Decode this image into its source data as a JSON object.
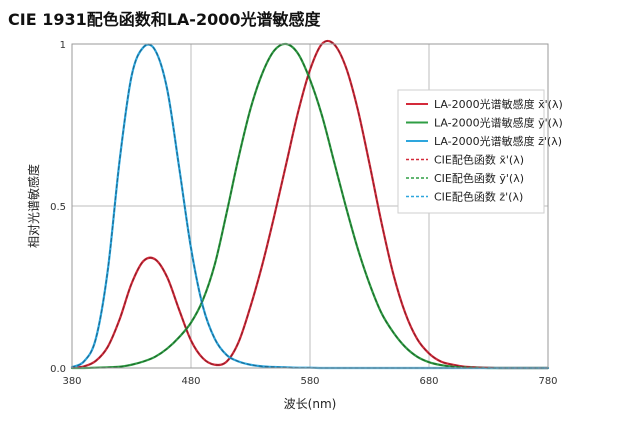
{
  "title": "CIE 1931配色函数和LA-2000光谱敏感度",
  "chart_data": {
    "type": "line",
    "title": "CIE 1931配色函数和LA-2000光谱敏感度",
    "xlabel": "波长(nm)",
    "ylabel": "相对光谱敏感度",
    "xlim": [
      380,
      780
    ],
    "ylim": [
      0,
      1.0
    ],
    "xticks": [
      {
        "value": 380,
        "label": "380"
      },
      {
        "value": 480,
        "label": "480"
      },
      {
        "value": 580,
        "label": "580"
      },
      {
        "value": 680,
        "label": "680"
      },
      {
        "value": 780,
        "label": "780"
      }
    ],
    "yticks": [
      {
        "value": 0,
        "label": "0.0"
      },
      {
        "value": 0.5,
        "label": "0.5"
      },
      {
        "value": 1.0,
        "label": "1"
      }
    ],
    "grid": true,
    "legend_position": "top-right",
    "x": [
      380,
      390,
      400,
      410,
      420,
      430,
      440,
      450,
      460,
      470,
      480,
      490,
      500,
      510,
      520,
      530,
      540,
      550,
      560,
      570,
      580,
      590,
      600,
      610,
      620,
      630,
      640,
      650,
      660,
      670,
      680,
      690,
      700,
      710,
      720,
      730,
      740,
      750,
      760,
      770,
      780
    ],
    "series": [
      {
        "name": "LA-2000光谱敏感度 x̄'(λ)",
        "color": "#d42a3a",
        "style": "solid",
        "values": [
          0.001,
          0.005,
          0.022,
          0.065,
          0.15,
          0.26,
          0.33,
          0.335,
          0.28,
          0.18,
          0.085,
          0.03,
          0.01,
          0.02,
          0.08,
          0.19,
          0.32,
          0.47,
          0.63,
          0.79,
          0.92,
          1.0,
          1.0,
          0.93,
          0.8,
          0.63,
          0.45,
          0.29,
          0.17,
          0.09,
          0.045,
          0.02,
          0.01,
          0.004,
          0.002,
          0.001,
          0.0,
          0.0,
          0.0,
          0.0,
          0.0
        ]
      },
      {
        "name": "LA-2000光谱敏感度 ȳ'(λ)",
        "color": "#2f9e44",
        "style": "solid",
        "values": [
          0.0,
          0.0,
          0.001,
          0.002,
          0.004,
          0.01,
          0.02,
          0.035,
          0.06,
          0.095,
          0.14,
          0.21,
          0.32,
          0.48,
          0.65,
          0.8,
          0.91,
          0.98,
          1.0,
          0.97,
          0.89,
          0.78,
          0.64,
          0.5,
          0.37,
          0.26,
          0.17,
          0.11,
          0.065,
          0.035,
          0.018,
          0.009,
          0.004,
          0.002,
          0.001,
          0.0,
          0.0,
          0.0,
          0.0,
          0.0,
          0.0
        ]
      },
      {
        "name": "LA-2000光谱敏感度 z̄'(λ)",
        "color": "#2ea6dd",
        "style": "solid",
        "values": [
          0.003,
          0.02,
          0.09,
          0.3,
          0.64,
          0.9,
          0.99,
          0.98,
          0.86,
          0.62,
          0.37,
          0.19,
          0.09,
          0.04,
          0.02,
          0.01,
          0.005,
          0.003,
          0.002,
          0.001,
          0.001,
          0.0,
          0.0,
          0.0,
          0.0,
          0.0,
          0.0,
          0.0,
          0.0,
          0.0,
          0.0,
          0.0,
          0.0,
          0.0,
          0.0,
          0.0,
          0.0,
          0.0,
          0.0,
          0.0,
          0.0
        ]
      },
      {
        "name": "CIE配色函数 x̄'(λ)",
        "color": "#d42a3a",
        "style": "dashed",
        "values": [
          0.001,
          0.005,
          0.022,
          0.065,
          0.15,
          0.26,
          0.33,
          0.335,
          0.28,
          0.18,
          0.085,
          0.03,
          0.01,
          0.02,
          0.08,
          0.19,
          0.32,
          0.47,
          0.63,
          0.79,
          0.92,
          1.0,
          1.0,
          0.93,
          0.8,
          0.63,
          0.45,
          0.29,
          0.17,
          0.09,
          0.045,
          0.02,
          0.01,
          0.004,
          0.002,
          0.001,
          0.0,
          0.0,
          0.0,
          0.0,
          0.0
        ]
      },
      {
        "name": "CIE配色函数 ȳ'(λ)",
        "color": "#2f9e44",
        "style": "dashed",
        "values": [
          0.0,
          0.0,
          0.001,
          0.002,
          0.004,
          0.01,
          0.02,
          0.035,
          0.06,
          0.095,
          0.14,
          0.21,
          0.32,
          0.48,
          0.65,
          0.8,
          0.91,
          0.98,
          1.0,
          0.97,
          0.89,
          0.78,
          0.64,
          0.5,
          0.37,
          0.26,
          0.17,
          0.11,
          0.065,
          0.035,
          0.018,
          0.009,
          0.004,
          0.002,
          0.001,
          0.0,
          0.0,
          0.0,
          0.0,
          0.0,
          0.0
        ]
      },
      {
        "name": "CIE配色函数 z̄'(λ)",
        "color": "#2ea6dd",
        "style": "dashed",
        "values": [
          0.003,
          0.02,
          0.09,
          0.3,
          0.64,
          0.9,
          0.99,
          0.98,
          0.86,
          0.62,
          0.37,
          0.19,
          0.09,
          0.04,
          0.02,
          0.01,
          0.005,
          0.003,
          0.002,
          0.001,
          0.001,
          0.0,
          0.0,
          0.0,
          0.0,
          0.0,
          0.0,
          0.0,
          0.0,
          0.0,
          0.0,
          0.0,
          0.0,
          0.0,
          0.0,
          0.0,
          0.0,
          0.0,
          0.0,
          0.0,
          0.0
        ]
      }
    ]
  }
}
